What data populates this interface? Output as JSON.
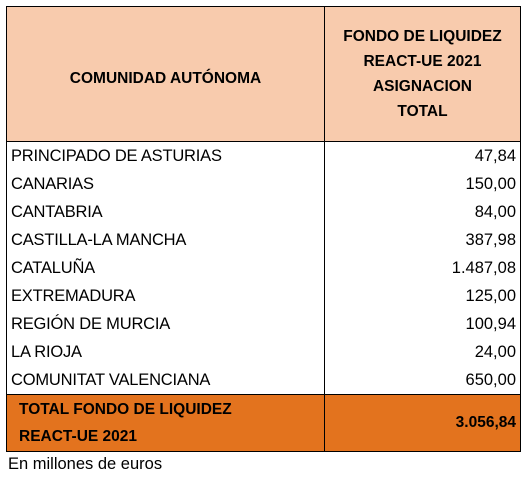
{
  "table": {
    "header": {
      "col1": "COMUNIDAD AUTÓNOMA",
      "col2_lines": [
        "FONDO DE LIQUIDEZ",
        "REACT-UE 2021",
        "ASIGNACION",
        "TOTAL"
      ]
    },
    "rows": [
      {
        "name": "PRINCIPADO DE ASTURIAS",
        "value": "47,84"
      },
      {
        "name": "CANARIAS",
        "value": "150,00"
      },
      {
        "name": "CANTABRIA",
        "value": "84,00"
      },
      {
        "name": "CASTILLA-LA MANCHA",
        "value": "387,98"
      },
      {
        "name": "CATALUÑA",
        "value": "1.487,08"
      },
      {
        "name": "EXTREMADURA",
        "value": "125,00"
      },
      {
        "name": "REGIÓN DE MURCIA",
        "value": "100,94"
      },
      {
        "name": "LA RIOJA",
        "value": "24,00"
      },
      {
        "name": "COMUNITAT VALENCIANA",
        "value": "650,00"
      }
    ],
    "total": {
      "label_lines": [
        "TOTAL FONDO DE LIQUIDEZ",
        "REACT-UE 2021"
      ],
      "value": "3.056,84"
    }
  },
  "note": "En millones de euros",
  "colors": {
    "header_bg": "#f8cbad",
    "total_bg": "#e3731e"
  }
}
